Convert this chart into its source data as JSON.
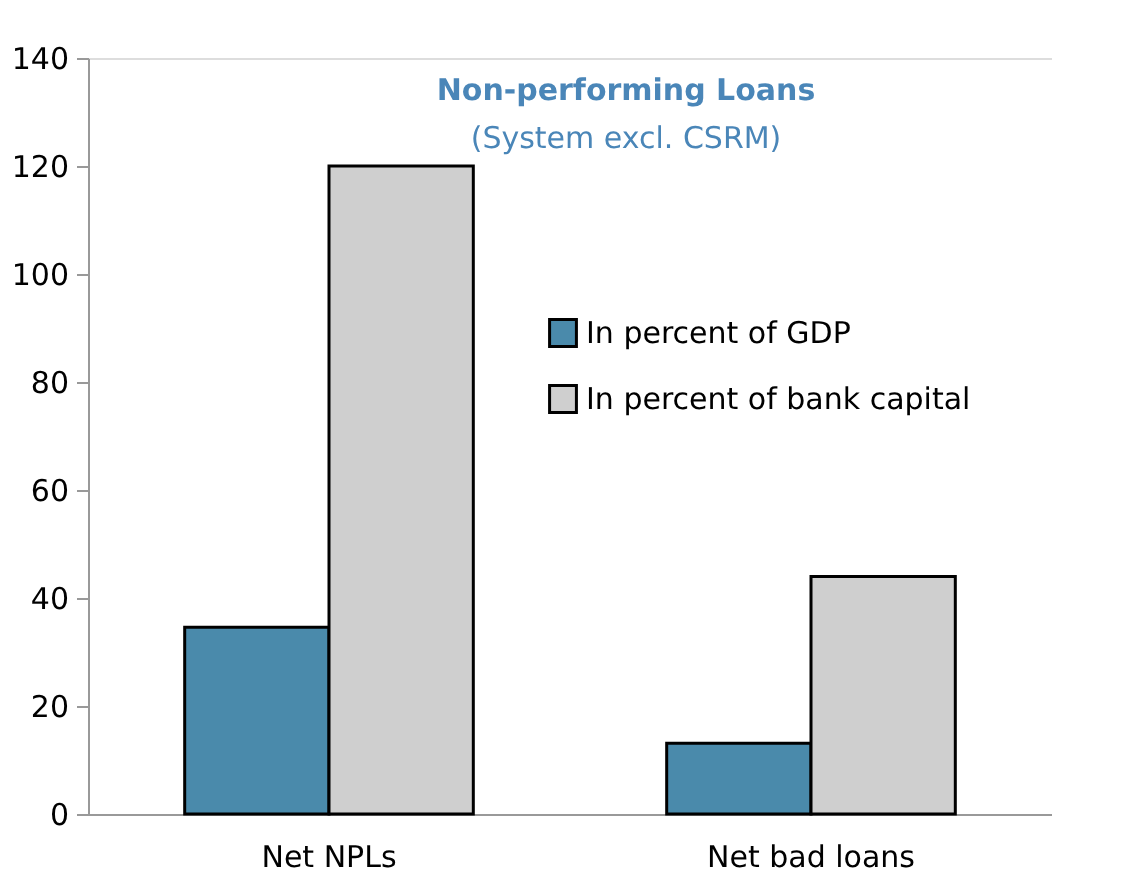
{
  "chart_data": {
    "type": "bar",
    "title": "Non-performing Loans",
    "subtitle": "(System excl. CSRM)",
    "categories": [
      "Net NPLs",
      "Net bad loans"
    ],
    "series": [
      {
        "name": "In percent of GDP",
        "color": "#4a8aab",
        "values": [
          34.6,
          13.1
        ]
      },
      {
        "name": "In percent of bank capital",
        "color": "#cfcfcf",
        "values": [
          120,
          44
        ]
      }
    ],
    "ylim": [
      0,
      140
    ],
    "yticks": [
      0,
      20,
      40,
      60,
      80,
      100,
      120,
      140
    ],
    "grid": false,
    "legend": "right"
  }
}
